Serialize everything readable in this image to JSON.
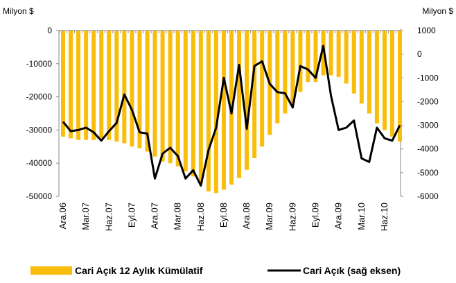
{
  "chart_data": {
    "type": "bar_line",
    "ylabel": "Milyon $",
    "y2label": "Milyon $",
    "categories": [
      "Ara.06",
      null,
      null,
      "Mar.07",
      null,
      null,
      "Haz.07",
      null,
      null,
      "Eyl.07",
      null,
      null,
      "Ara.07",
      null,
      null,
      "Mar.08",
      null,
      null,
      "Haz.08",
      null,
      null,
      "Eyl.08",
      null,
      null,
      "Ara.08",
      null,
      null,
      "Mar.09",
      null,
      null,
      "Haz.09",
      null,
      null,
      "Eyl.09",
      null,
      null,
      "Ara.09",
      null,
      null,
      "Mar.10",
      null,
      null,
      "Haz.10",
      null,
      null
    ],
    "series": [
      {
        "name": "Cari Açık 12 Aylık Kümülatif",
        "type": "bar",
        "color": "#f9bd0b",
        "values": [
          -32000,
          -32500,
          -33000,
          -33000,
          -33000,
          -32500,
          -33000,
          -33500,
          -34000,
          -35000,
          -35500,
          -36500,
          -38000,
          -39500,
          -40000,
          -41000,
          -42500,
          -44000,
          -46000,
          -48500,
          -49000,
          -48000,
          -46500,
          -44500,
          -42000,
          -38500,
          -35000,
          -31500,
          -28000,
          -25000,
          -22000,
          -18500,
          -15500,
          -15500,
          -13500,
          -13500,
          -14000,
          -16000,
          -19000,
          -22000,
          -25000,
          -28000,
          -30000,
          -32000,
          -33500
        ]
      },
      {
        "name": "Cari Açık (sağ eksen)",
        "type": "line",
        "axis": "y2",
        "color": "#000000",
        "values": [
          -2850,
          -3250,
          -3200,
          -3100,
          -3300,
          -3650,
          -3250,
          -2900,
          -1700,
          -2350,
          -3300,
          -3350,
          -5250,
          -4200,
          -3950,
          -4300,
          -5250,
          -4900,
          -5550,
          -4050,
          -3100,
          -1000,
          -2500,
          -450,
          -3150,
          -500,
          -300,
          -1250,
          -1600,
          -1650,
          -2250,
          -500,
          -650,
          -1000,
          350,
          -1750,
          -3200,
          -3100,
          -2800,
          -4400,
          -4550,
          -3100,
          -3550,
          -3650,
          -3000
        ]
      }
    ],
    "ylim": [
      -50000,
      0
    ],
    "yticks": [
      0,
      -10000,
      -20000,
      -30000,
      -40000,
      -50000
    ],
    "y2lim": [
      -6000,
      1000
    ],
    "y2ticks": [
      1000,
      0,
      -1000,
      -2000,
      -3000,
      -4000,
      -5000,
      -6000
    ],
    "legend": "bottom"
  }
}
